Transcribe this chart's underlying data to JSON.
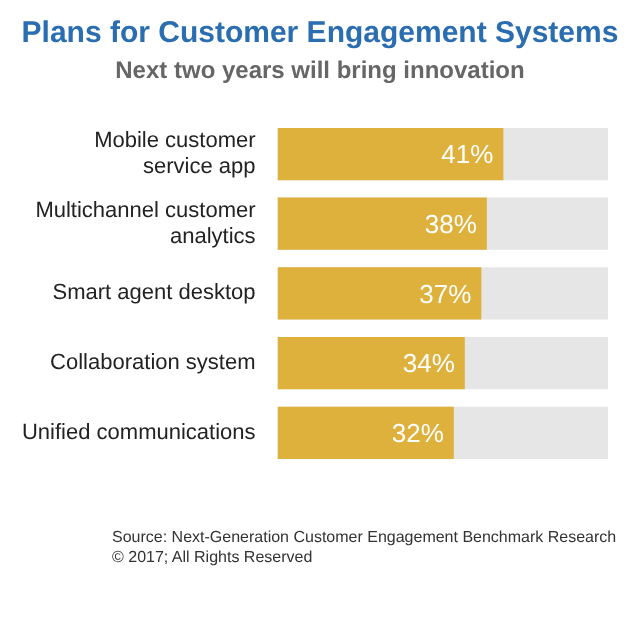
{
  "chart_data": {
    "type": "bar",
    "orientation": "horizontal",
    "title": "Plans for Customer Engagement Systems",
    "subtitle": "Next two years will bring innovation",
    "categories": [
      "Mobile customer service app",
      "Multichannel customer analytics",
      "Smart agent desktop",
      "Collaboration system",
      "Unified communications"
    ],
    "values": [
      41,
      38,
      37,
      34,
      32
    ],
    "value_labels": [
      "41%",
      "38%",
      "37%",
      "34%",
      "32%"
    ],
    "color": "#deb03c",
    "xlim": [
      0,
      60
    ],
    "tick_labels": "y",
    "annotations": [
      "Source: Next-Generation Customer Engagement Benchmark Research",
      "© 2017; All Rights Reserved"
    ]
  }
}
